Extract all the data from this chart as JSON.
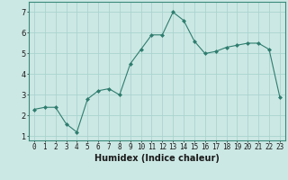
{
  "x": [
    0,
    1,
    2,
    3,
    4,
    5,
    6,
    7,
    8,
    9,
    10,
    11,
    12,
    13,
    14,
    15,
    16,
    17,
    18,
    19,
    20,
    21,
    22,
    23
  ],
  "y": [
    2.3,
    2.4,
    2.4,
    1.6,
    1.2,
    2.8,
    3.2,
    3.3,
    3.0,
    4.5,
    5.2,
    5.9,
    5.9,
    7.0,
    6.6,
    5.6,
    5.0,
    5.1,
    5.3,
    5.4,
    5.5,
    5.5,
    5.2,
    2.9
  ],
  "line_color": "#2e7d6e",
  "marker": "D",
  "marker_size": 2,
  "bg_color": "#cce8e4",
  "grid_color": "#aad4cf",
  "xlabel": "Humidex (Indice chaleur)",
  "ylim": [
    0.8,
    7.5
  ],
  "xlim": [
    -0.5,
    23.5
  ],
  "yticks": [
    1,
    2,
    3,
    4,
    5,
    6,
    7
  ],
  "xticks": [
    0,
    1,
    2,
    3,
    4,
    5,
    6,
    7,
    8,
    9,
    10,
    11,
    12,
    13,
    14,
    15,
    16,
    17,
    18,
    19,
    20,
    21,
    22,
    23
  ],
  "tick_fontsize": 5.5,
  "xlabel_fontsize": 7
}
